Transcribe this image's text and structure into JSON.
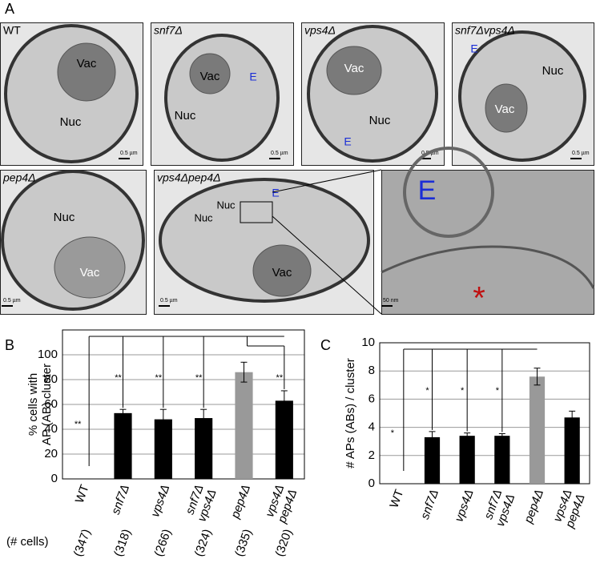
{
  "panel_a": {
    "label": "A",
    "images": [
      {
        "title": "WT",
        "labels": [
          "Vac",
          "Nuc"
        ],
        "scale": "0.5 µm"
      },
      {
        "title": "snf7Δ",
        "labels": [
          "Vac",
          "Nuc",
          "E"
        ],
        "scale": "0.5 µm"
      },
      {
        "title": "vps4Δ",
        "labels": [
          "Vac",
          "Nuc",
          "E"
        ],
        "scale": "0.5 µm"
      },
      {
        "title": "snf7Δvps4Δ",
        "labels": [
          "E",
          "Nuc",
          "Vac"
        ],
        "scale": "0.5 µm"
      },
      {
        "title": "pep4Δ",
        "labels": [
          "Nuc",
          "Vac"
        ],
        "scale": "0.5 µm"
      },
      {
        "title": "vps4Δpep4Δ",
        "labels": [
          "Nuc",
          "Nuc",
          "Vac",
          "E"
        ],
        "scale": "0.5 µm"
      },
      {
        "title": null,
        "labels": [
          "E",
          "*"
        ],
        "scale": "50 nm"
      }
    ]
  },
  "chart_data": [
    {
      "type": "bar",
      "panel": "B",
      "ylabel": [
        "% cells with",
        "AP (AB) cluster"
      ],
      "categories": [
        "WT",
        "snf7Δ",
        "vps4Δ",
        "snf7Δ vps4Δ",
        "pep4Δ",
        "vps4Δ pep4Δ"
      ],
      "values": [
        0,
        53,
        48,
        49,
        86,
        63
      ],
      "errors": [
        null,
        3,
        8,
        7,
        8,
        8
      ],
      "colors": [
        "#000000",
        "#000000",
        "#000000",
        "#000000",
        "#999999",
        "#000000"
      ],
      "significance": [
        "**",
        "**",
        "**",
        "**",
        null,
        "**"
      ],
      "ylim": [
        0,
        120
      ],
      "yticks": [
        0,
        20,
        40,
        60,
        80,
        100
      ],
      "grid": true,
      "counts_label": "(# cells)",
      "counts": [
        "(347)",
        "(318)",
        "(266)",
        "(324)",
        "(335)",
        "(320)"
      ]
    },
    {
      "type": "bar",
      "panel": "C",
      "ylabel": [
        "# APs (ABs) / cluster"
      ],
      "categories": [
        "WT",
        "snf7Δ",
        "vps4Δ",
        "snf7Δ vps4Δ",
        "pep4Δ",
        "vps4Δ pep4Δ"
      ],
      "values": [
        0,
        3.3,
        3.4,
        3.4,
        7.6,
        4.7
      ],
      "errors": [
        null,
        0.4,
        0.2,
        0.15,
        0.6,
        0.45
      ],
      "colors": [
        "#000000",
        "#000000",
        "#000000",
        "#000000",
        "#999999",
        "#000000"
      ],
      "significance": [
        "*",
        "*",
        "*",
        "*",
        null,
        null
      ],
      "ylim": [
        0,
        10
      ],
      "yticks": [
        0,
        2,
        4,
        6,
        8,
        10
      ],
      "grid": true
    }
  ]
}
